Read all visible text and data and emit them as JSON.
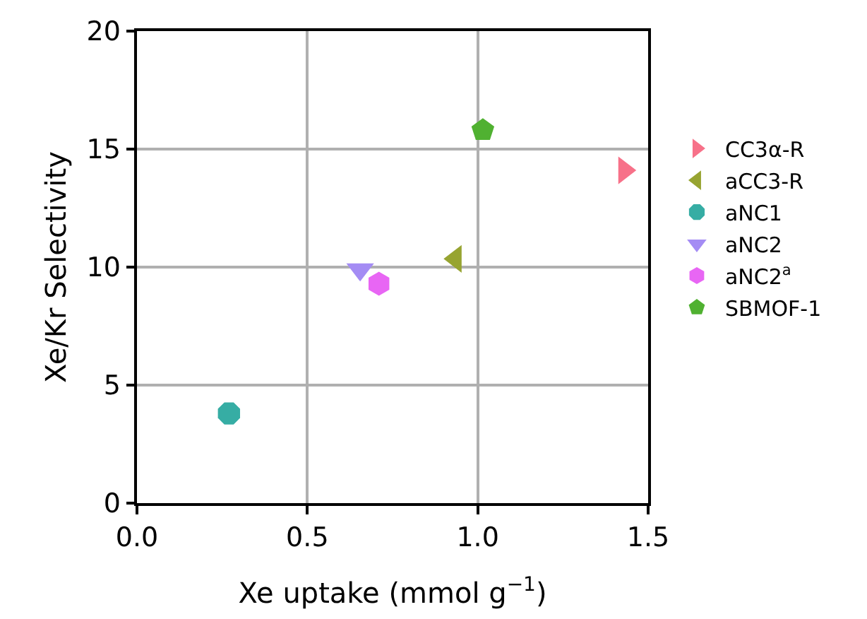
{
  "chart_data": {
    "type": "scatter",
    "xlabel": "Xe uptake (mmol g$^{−1}$)",
    "ylabel": "Xe/Kr Selectivity",
    "xlim": [
      0,
      1.5
    ],
    "xticks": [
      {
        "value": 0,
        "label": "0.0"
      },
      0.5,
      {
        "value": 1,
        "label": "1.0"
      },
      1.5
    ],
    "ylim": [
      0,
      20
    ],
    "yticks": [
      0,
      5,
      10,
      15,
      20
    ],
    "grid": true,
    "legend": "right",
    "series": [
      {
        "name": "CC3α-R",
        "color": "#f77189",
        "marker": "triangle-right",
        "x": [
          1.43
        ],
        "values": [
          14.1
        ]
      },
      {
        "name": "aCC3-R",
        "color": "#97a431",
        "marker": "triangle-left",
        "x": [
          0.935
        ],
        "values": [
          10.35
        ]
      },
      {
        "name": "aNC1",
        "color": "#36ada4",
        "x": [
          0.27
        ],
        "values": [
          3.8
        ]
      },
      {
        "name": "aNC2",
        "color": "#a48cf4",
        "marker": "triangle-down",
        "x": [
          0.655
        ],
        "values": [
          9.9
        ]
      },
      {
        "name": "aNC2$^{a}$",
        "color": "#e866f4",
        "x": [
          0.71
        ],
        "values": [
          9.3
        ]
      },
      {
        "name": "SBMOF-1",
        "color": "#50b131",
        "x": [
          1.015
        ],
        "values": [
          15.8
        ]
      }
    ]
  }
}
